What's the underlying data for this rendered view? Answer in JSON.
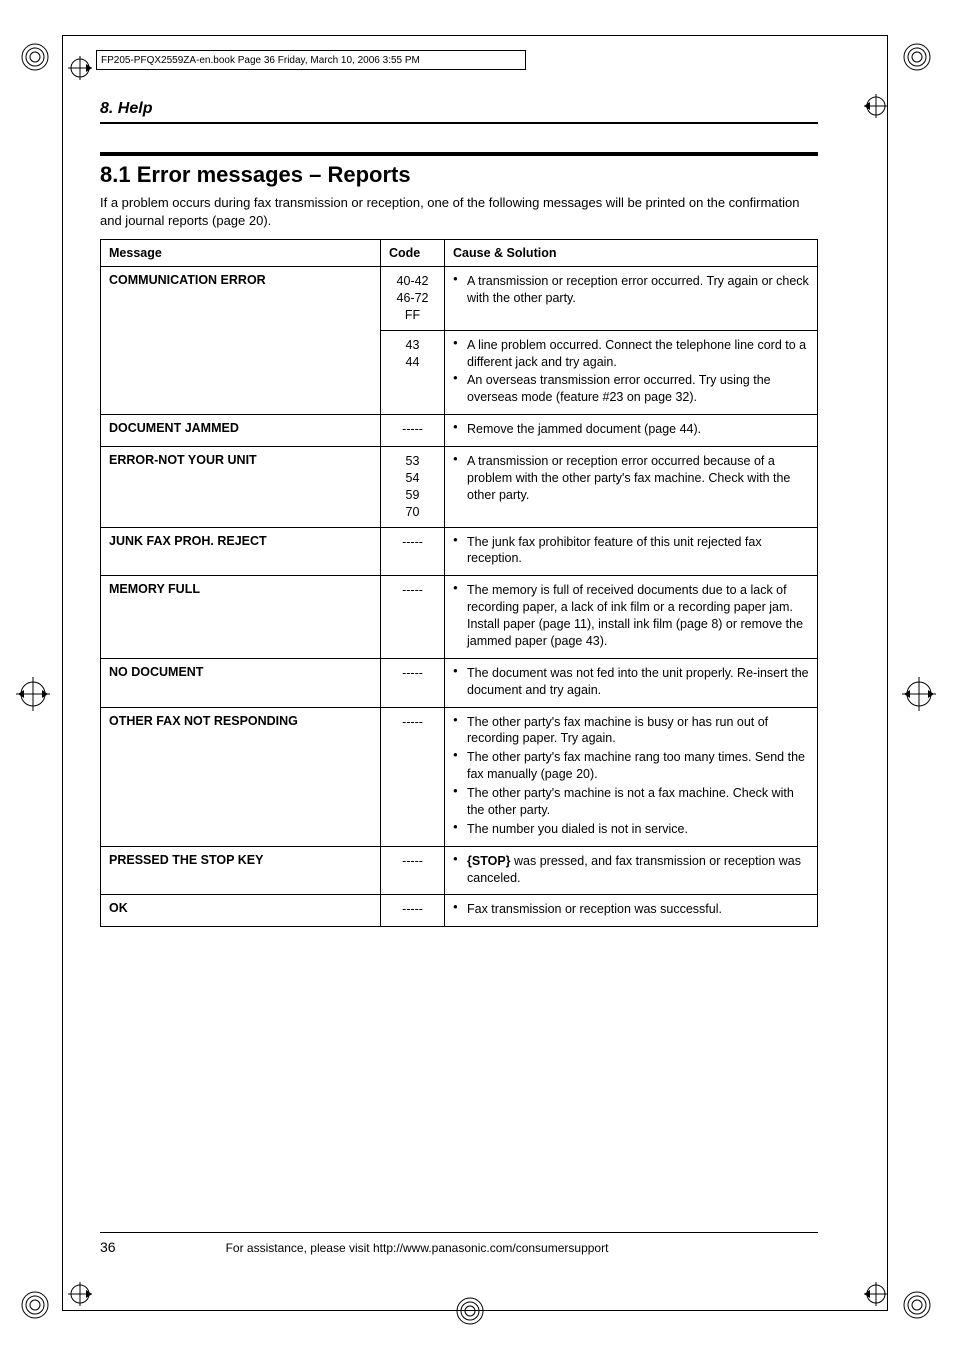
{
  "printmeta": {
    "header_line": "FP205-PFQX2559ZA-en.book  Page 36  Friday, March 10, 2006  3:55 PM"
  },
  "chapter": "8. Help",
  "section_title": "8.1 Error messages – Reports",
  "intro": "If a problem occurs during fax transmission or reception, one of the following messages will be printed on the confirmation and journal reports (page 20).",
  "table": {
    "headers": {
      "message": "Message",
      "code": "Code",
      "cause": "Cause & Solution"
    },
    "rows": [
      {
        "message": "COMMUNICATION ERROR",
        "code": "40-42\n46-72\nFF",
        "solutions": [
          "A transmission or reception error occurred. Try again or check with the other party."
        ],
        "rowspan_msg": 2
      },
      {
        "message": "",
        "code": "43\n44",
        "solutions": [
          "A line problem occurred. Connect the telephone line cord to a different jack and try again.",
          "An overseas transmission error occurred. Try using the overseas mode (feature #23 on page 32)."
        ],
        "continued": true
      },
      {
        "message": "DOCUMENT JAMMED",
        "code": "-----",
        "solutions": [
          "Remove the jammed document (page 44)."
        ]
      },
      {
        "message": "ERROR-NOT YOUR UNIT",
        "code": "53\n54\n59\n70",
        "solutions": [
          "A transmission or reception error occurred because of a problem with the other party's fax machine. Check with the other party."
        ]
      },
      {
        "message": "JUNK FAX PROH. REJECT",
        "code": "-----",
        "solutions": [
          "The junk fax prohibitor feature of this unit rejected fax reception."
        ]
      },
      {
        "message": "MEMORY FULL",
        "code": "-----",
        "solutions": [
          "The memory is full of received documents due to a lack of recording paper, a lack of ink film or a recording paper jam. Install paper (page 11), install ink film (page 8) or remove the jammed paper (page 43)."
        ]
      },
      {
        "message": "NO DOCUMENT",
        "code": "-----",
        "solutions": [
          "The document was not fed into the unit properly. Re-insert the document and try again."
        ]
      },
      {
        "message": "OTHER FAX NOT RESPONDING",
        "code": "-----",
        "solutions": [
          "The other party's fax machine is busy or has run out of recording paper. Try again.",
          "The other party's fax machine rang too many times. Send the fax manually (page 20).",
          "The other party's machine is not a fax machine. Check with the other party.",
          "The number you dialed is not in service."
        ]
      },
      {
        "message": "PRESSED THE STOP KEY",
        "code": "-----",
        "solutions_html": "<b>{STOP}</b> was pressed, and fax transmission or reception was canceled."
      },
      {
        "message": "OK",
        "code": "-----",
        "solutions": [
          "Fax transmission or reception was successful."
        ]
      }
    ]
  },
  "footer": {
    "page": "36",
    "text": "For assistance, please visit http://www.panasonic.com/consumersupport"
  },
  "colors": {
    "text": "#000000",
    "bg": "#ffffff"
  }
}
